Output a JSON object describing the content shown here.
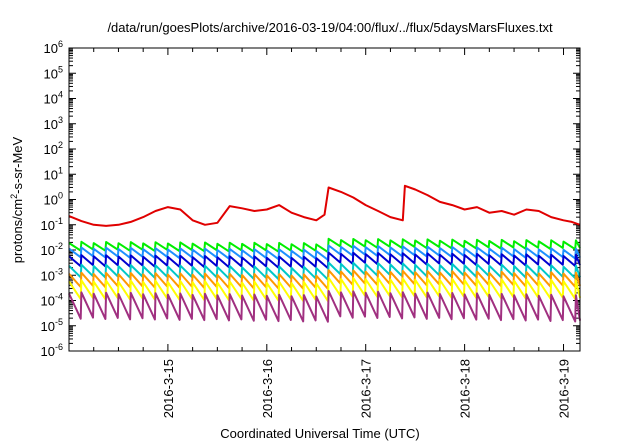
{
  "chart_data": {
    "type": "line",
    "title": "/data/run/goesPlots/archive/2016-03-19/04:00/flux/../flux/5daysMarsFluxes.txt",
    "xlabel": "Coordinated Universal Time (UTC)",
    "ylabel": {
      "prefix": "protons/cm",
      "sup": "2",
      "suffix": "-s-sr-MeV"
    },
    "x_range": [
      "2016-03-14T00:00",
      "2016-03-19T04:00"
    ],
    "x_ticks": [
      "2016-3-15",
      "2016-3-16",
      "2016-3-17",
      "2016-3-18",
      "2016-3-19"
    ],
    "y_scale": "log",
    "y_range": [
      1e-06,
      1000000.0
    ],
    "y_tick_exponents": [
      -6,
      -5,
      -4,
      -3,
      -2,
      -1,
      0,
      1,
      2,
      3,
      4,
      5,
      6
    ],
    "y_tick_base": "10",
    "grid": false,
    "sawtooth_period_hours": 3,
    "series": [
      {
        "color": "#e00000",
        "values": [
          [
            "2016-03-14T00:00",
            0.22
          ],
          [
            "2016-03-14T03:00",
            0.14
          ],
          [
            "2016-03-14T06:00",
            0.1
          ],
          [
            "2016-03-14T09:00",
            0.09
          ],
          [
            "2016-03-14T12:00",
            0.1
          ],
          [
            "2016-03-14T15:00",
            0.13
          ],
          [
            "2016-03-14T18:00",
            0.2
          ],
          [
            "2016-03-14T21:00",
            0.35
          ],
          [
            "2016-03-15T00:00",
            0.5
          ],
          [
            "2016-03-15T03:00",
            0.4
          ],
          [
            "2016-03-15T06:00",
            0.15
          ],
          [
            "2016-03-15T09:00",
            0.1
          ],
          [
            "2016-03-15T12:00",
            0.12
          ],
          [
            "2016-03-15T15:00",
            0.55
          ],
          [
            "2016-03-15T18:00",
            0.45
          ],
          [
            "2016-03-15T21:00",
            0.35
          ],
          [
            "2016-03-16T00:00",
            0.4
          ],
          [
            "2016-03-16T03:00",
            0.6
          ],
          [
            "2016-03-16T06:00",
            0.3
          ],
          [
            "2016-03-16T09:00",
            0.2
          ],
          [
            "2016-03-16T12:00",
            0.15
          ],
          [
            "2016-03-16T14:00",
            0.25
          ],
          [
            "2016-03-16T15:00",
            3.0
          ],
          [
            "2016-03-16T18:00",
            2.0
          ],
          [
            "2016-03-16T21:00",
            1.2
          ],
          [
            "2016-03-17T00:00",
            0.6
          ],
          [
            "2016-03-17T03:00",
            0.35
          ],
          [
            "2016-03-17T06:00",
            0.2
          ],
          [
            "2016-03-17T09:00",
            0.15
          ],
          [
            "2016-03-17T09:30",
            3.5
          ],
          [
            "2016-03-17T12:00",
            2.5
          ],
          [
            "2016-03-17T15:00",
            1.5
          ],
          [
            "2016-03-17T18:00",
            0.8
          ],
          [
            "2016-03-17T21:00",
            0.6
          ],
          [
            "2016-03-18T00:00",
            0.4
          ],
          [
            "2016-03-18T03:00",
            0.5
          ],
          [
            "2016-03-18T06:00",
            0.3
          ],
          [
            "2016-03-18T09:00",
            0.35
          ],
          [
            "2016-03-18T12:00",
            0.25
          ],
          [
            "2016-03-18T15:00",
            0.4
          ],
          [
            "2016-03-18T18:00",
            0.35
          ],
          [
            "2016-03-18T21:00",
            0.2
          ],
          [
            "2016-03-19T00:00",
            0.15
          ],
          [
            "2016-03-19T02:00",
            0.13
          ],
          [
            "2016-03-19T04:00",
            0.1
          ]
        ]
      },
      {
        "color": "#00ee00",
        "peak_range": [
          0.015,
          0.05
        ],
        "trough_factor": 0.5,
        "drift": [
          0.02,
          0.015
        ]
      },
      {
        "color": "#1e90ff",
        "peak_range": [
          0.008,
          0.03
        ],
        "trough_factor": 0.45,
        "drift": [
          0.012,
          0.007
        ]
      },
      {
        "color": "#0000d0",
        "peak_range": [
          0.004,
          0.02
        ],
        "trough_factor": 0.4,
        "drift": [
          0.006,
          0.004
        ]
      },
      {
        "color": "#00c8c8",
        "peak_range": [
          0.001,
          0.005
        ],
        "trough_factor": 0.35,
        "drift": [
          0.0025,
          0.0015
        ]
      },
      {
        "color": "#ff9900",
        "peak_range": [
          0.0006,
          0.002
        ],
        "trough_factor": 0.3,
        "drift": [
          0.0012,
          0.0008
        ]
      },
      {
        "color": "#ffff00",
        "peak_range": [
          0.0003,
          0.001
        ],
        "trough_factor": 0.2,
        "drift": [
          0.0006,
          0.0004
        ]
      },
      {
        "color": "#a03080",
        "peak_range": [
          0.0001,
          0.0004
        ],
        "trough_factor": 0.1,
        "drift": [
          0.0002,
          0.0001
        ]
      }
    ]
  }
}
